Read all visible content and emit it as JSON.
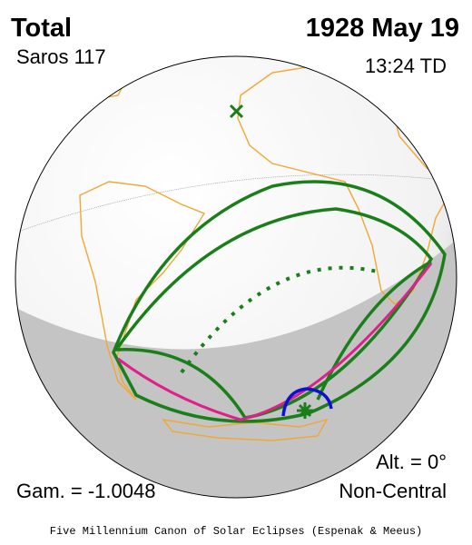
{
  "header": {
    "eclipse_type": "Total",
    "date": "1928 May 19",
    "saros": "Saros 117",
    "time": "13:24 TD"
  },
  "footer": {
    "gamma": "Gam. = -1.0048",
    "altitude": "Alt. = 0°",
    "centrality": "Non-Central",
    "credit": "Five Millennium Canon of Solar Eclipses (Espenak & Meeus)"
  }
}
